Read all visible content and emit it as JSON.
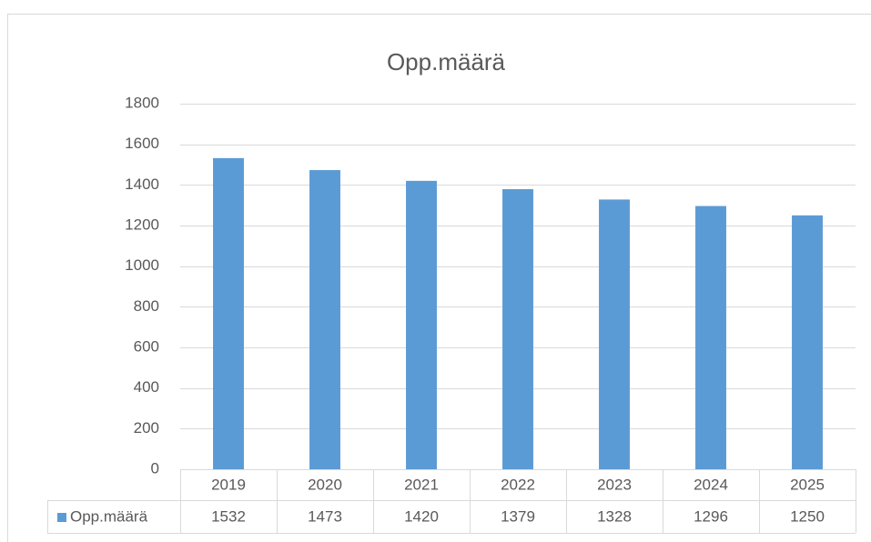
{
  "chart_data": {
    "type": "bar",
    "title": "Opp.määrä",
    "categories": [
      "2019",
      "2020",
      "2021",
      "2022",
      "2023",
      "2024",
      "2025"
    ],
    "series": [
      {
        "name": "Opp.määrä",
        "color": "#5b9bd5",
        "values": [
          1532,
          1473,
          1420,
          1379,
          1328,
          1296,
          1250
        ]
      }
    ],
    "ylim": [
      0,
      1800
    ],
    "yticks": [
      0,
      200,
      400,
      600,
      800,
      1000,
      1200,
      1400,
      1600,
      1800
    ],
    "grid": true,
    "data_table": true
  }
}
